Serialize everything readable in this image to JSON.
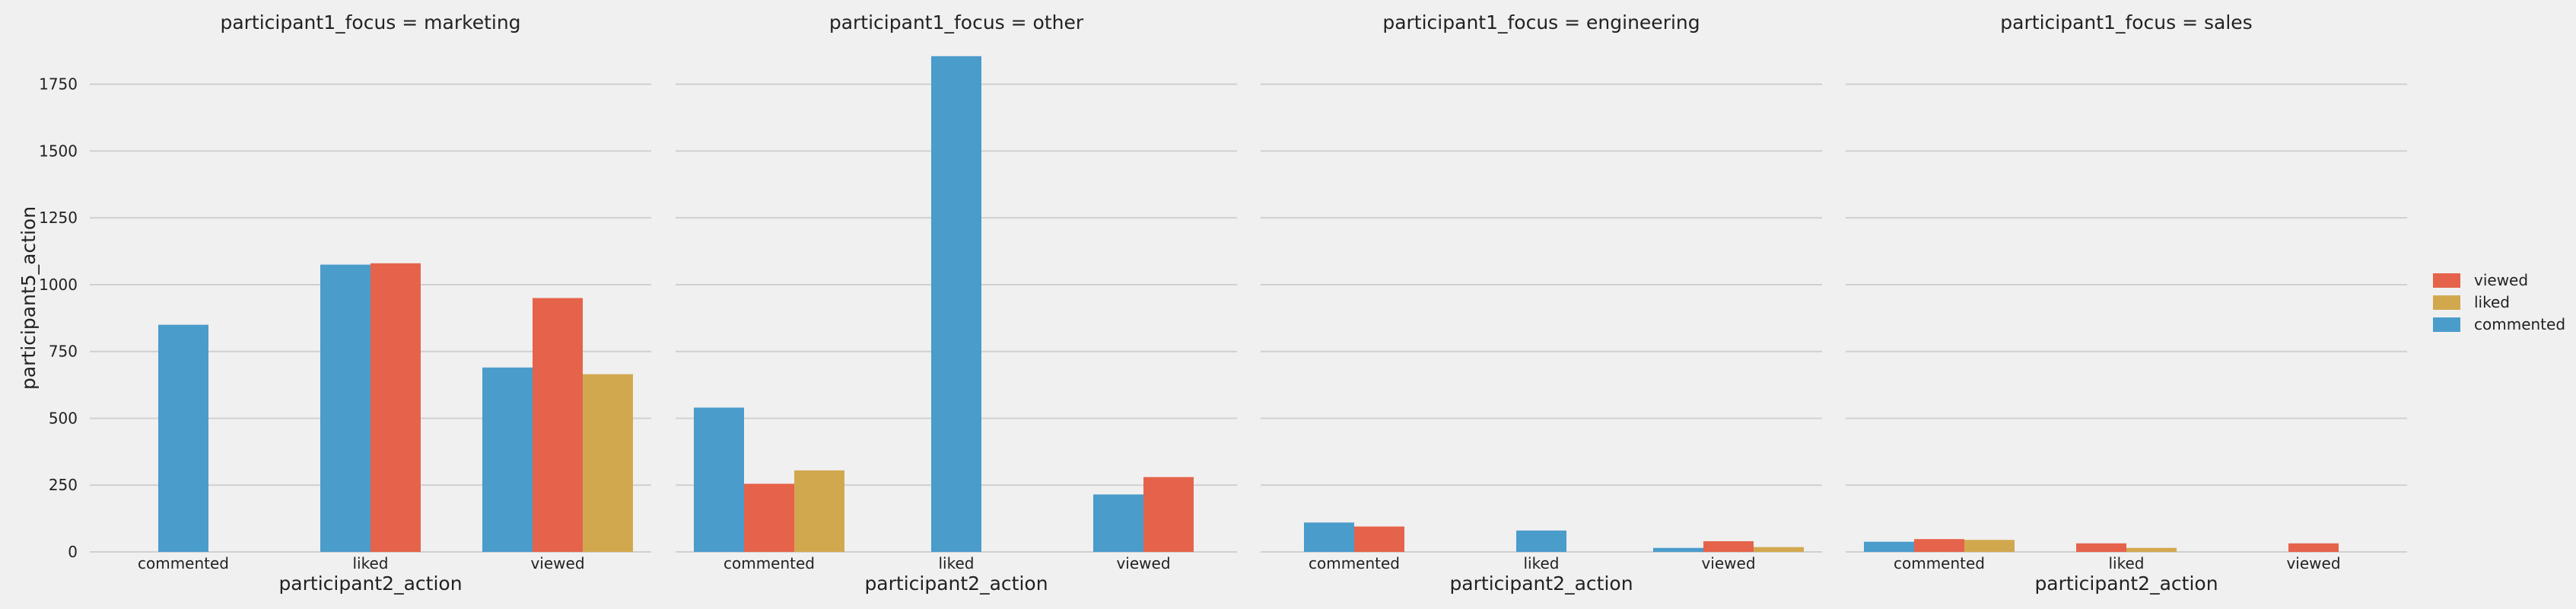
{
  "chart_data": {
    "type": "bar",
    "facet_titles": [
      "participant1_focus = marketing",
      "participant1_focus = other",
      "participant1_focus = engineering",
      "participant1_focus = sales"
    ],
    "categories": [
      "commented",
      "liked",
      "viewed"
    ],
    "xlabel": "participant2_action",
    "ylabel": "participant5_action",
    "ylim": [
      0,
      1900
    ],
    "yticks": [
      0,
      250,
      500,
      750,
      1000,
      1250,
      1500,
      1750
    ],
    "grid": true,
    "legend_position": "right",
    "hue_order": [
      "commented",
      "viewed",
      "liked"
    ],
    "legend_order": [
      "viewed",
      "liked",
      "commented"
    ],
    "colors": {
      "commented": "#4a9ccb",
      "viewed": "#e5634b",
      "liked": "#d2a84f"
    },
    "facets": [
      {
        "values": {
          "commented": [
            850,
            1075,
            690
          ],
          "viewed": [
            0,
            1080,
            950
          ],
          "liked": [
            0,
            0,
            665
          ]
        }
      },
      {
        "values": {
          "commented": [
            540,
            1855,
            215
          ],
          "viewed": [
            255,
            0,
            280
          ],
          "liked": [
            305,
            0,
            0
          ]
        }
      },
      {
        "values": {
          "commented": [
            110,
            80,
            15
          ],
          "viewed": [
            95,
            0,
            40
          ],
          "liked": [
            0,
            0,
            18
          ]
        }
      },
      {
        "values": {
          "commented": [
            38,
            0,
            0
          ],
          "viewed": [
            48,
            32,
            32
          ],
          "liked": [
            45,
            15,
            0
          ]
        }
      }
    ]
  }
}
